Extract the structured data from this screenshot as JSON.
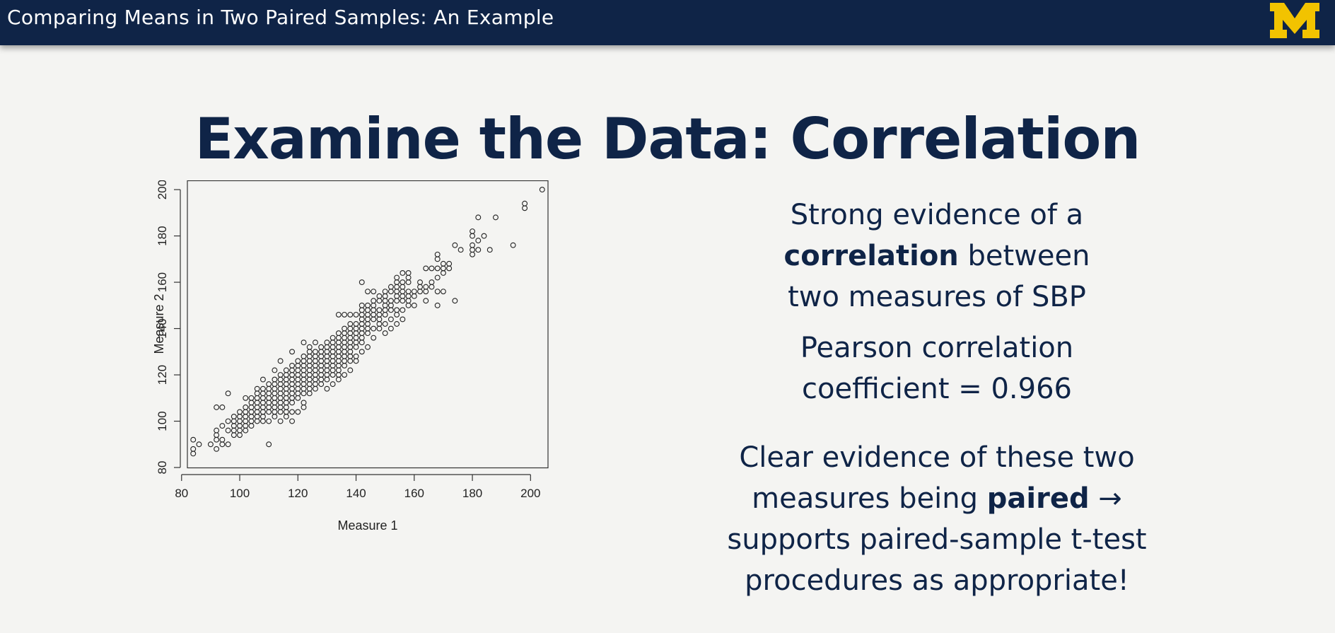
{
  "header": {
    "title": "Comparing Means in Two Paired Samples: An Example",
    "logo_text": "M",
    "logo_color": "#f2c300",
    "bar_color": "#0f2447"
  },
  "slide": {
    "title": "Examine the Data: Correlation"
  },
  "text": {
    "p1_line1": "Strong evidence of a",
    "p1_line2_bold": "correlation",
    "p1_line2_rest": " between",
    "p1_line3": "two measures of SBP",
    "p2_line1": "Pearson correlation",
    "p2_line2": "coefficient = 0.966",
    "p3_line1": "Clear evidence of these two",
    "p3_line2_pre": "measures being ",
    "p3_line2_bold": "paired",
    "p3_line2_post": " →",
    "p3_line3": "supports paired-sample t-test",
    "p3_line4": "procedures as appropriate!"
  },
  "chart_data": {
    "type": "scatter",
    "title": "",
    "xlabel": "Measure 1",
    "ylabel": "Measure 2",
    "xlim": [
      82,
      206
    ],
    "ylim": [
      80,
      204
    ],
    "xticks": [
      80,
      100,
      120,
      140,
      160,
      180,
      200
    ],
    "yticks": [
      80,
      100,
      120,
      140,
      160,
      180,
      200
    ],
    "grid": false,
    "points": [
      [
        84,
        86
      ],
      [
        84,
        88
      ],
      [
        84,
        92
      ],
      [
        86,
        90
      ],
      [
        90,
        90
      ],
      [
        92,
        88
      ],
      [
        92,
        92
      ],
      [
        92,
        94
      ],
      [
        92,
        96
      ],
      [
        92,
        106
      ],
      [
        94,
        90
      ],
      [
        94,
        92
      ],
      [
        94,
        98
      ],
      [
        94,
        106
      ],
      [
        96,
        90
      ],
      [
        96,
        96
      ],
      [
        96,
        100
      ],
      [
        96,
        112
      ],
      [
        98,
        94
      ],
      [
        98,
        96
      ],
      [
        98,
        98
      ],
      [
        98,
        100
      ],
      [
        98,
        102
      ],
      [
        100,
        94
      ],
      [
        100,
        96
      ],
      [
        100,
        98
      ],
      [
        100,
        100
      ],
      [
        100,
        102
      ],
      [
        100,
        104
      ],
      [
        102,
        96
      ],
      [
        102,
        98
      ],
      [
        102,
        100
      ],
      [
        102,
        102
      ],
      [
        102,
        104
      ],
      [
        102,
        106
      ],
      [
        102,
        110
      ],
      [
        104,
        98
      ],
      [
        104,
        100
      ],
      [
        104,
        102
      ],
      [
        104,
        104
      ],
      [
        104,
        106
      ],
      [
        104,
        108
      ],
      [
        104,
        110
      ],
      [
        106,
        100
      ],
      [
        106,
        102
      ],
      [
        106,
        104
      ],
      [
        106,
        106
      ],
      [
        106,
        108
      ],
      [
        106,
        110
      ],
      [
        106,
        112
      ],
      [
        106,
        114
      ],
      [
        108,
        100
      ],
      [
        108,
        102
      ],
      [
        108,
        104
      ],
      [
        108,
        106
      ],
      [
        108,
        108
      ],
      [
        108,
        110
      ],
      [
        108,
        112
      ],
      [
        108,
        114
      ],
      [
        108,
        118
      ],
      [
        110,
        90
      ],
      [
        110,
        100
      ],
      [
        110,
        104
      ],
      [
        110,
        106
      ],
      [
        110,
        108
      ],
      [
        110,
        110
      ],
      [
        110,
        112
      ],
      [
        110,
        114
      ],
      [
        110,
        116
      ],
      [
        112,
        102
      ],
      [
        112,
        104
      ],
      [
        112,
        106
      ],
      [
        112,
        108
      ],
      [
        112,
        110
      ],
      [
        112,
        112
      ],
      [
        112,
        114
      ],
      [
        112,
        116
      ],
      [
        112,
        118
      ],
      [
        112,
        122
      ],
      [
        114,
        100
      ],
      [
        114,
        104
      ],
      [
        114,
        106
      ],
      [
        114,
        108
      ],
      [
        114,
        110
      ],
      [
        114,
        112
      ],
      [
        114,
        114
      ],
      [
        114,
        116
      ],
      [
        114,
        118
      ],
      [
        114,
        120
      ],
      [
        114,
        126
      ],
      [
        116,
        102
      ],
      [
        116,
        104
      ],
      [
        116,
        106
      ],
      [
        116,
        108
      ],
      [
        116,
        110
      ],
      [
        116,
        112
      ],
      [
        116,
        114
      ],
      [
        116,
        116
      ],
      [
        116,
        118
      ],
      [
        116,
        120
      ],
      [
        116,
        122
      ],
      [
        118,
        100
      ],
      [
        118,
        104
      ],
      [
        118,
        108
      ],
      [
        118,
        110
      ],
      [
        118,
        112
      ],
      [
        118,
        114
      ],
      [
        118,
        116
      ],
      [
        118,
        118
      ],
      [
        118,
        120
      ],
      [
        118,
        122
      ],
      [
        118,
        124
      ],
      [
        118,
        130
      ],
      [
        120,
        104
      ],
      [
        120,
        110
      ],
      [
        120,
        112
      ],
      [
        120,
        114
      ],
      [
        120,
        116
      ],
      [
        120,
        118
      ],
      [
        120,
        120
      ],
      [
        120,
        122
      ],
      [
        120,
        124
      ],
      [
        120,
        126
      ],
      [
        122,
        106
      ],
      [
        122,
        108
      ],
      [
        122,
        112
      ],
      [
        122,
        114
      ],
      [
        122,
        116
      ],
      [
        122,
        118
      ],
      [
        122,
        120
      ],
      [
        122,
        122
      ],
      [
        122,
        124
      ],
      [
        122,
        126
      ],
      [
        122,
        128
      ],
      [
        122,
        134
      ],
      [
        124,
        112
      ],
      [
        124,
        114
      ],
      [
        124,
        116
      ],
      [
        124,
        118
      ],
      [
        124,
        120
      ],
      [
        124,
        122
      ],
      [
        124,
        124
      ],
      [
        124,
        126
      ],
      [
        124,
        128
      ],
      [
        124,
        130
      ],
      [
        124,
        132
      ],
      [
        126,
        114
      ],
      [
        126,
        116
      ],
      [
        126,
        118
      ],
      [
        126,
        120
      ],
      [
        126,
        122
      ],
      [
        126,
        124
      ],
      [
        126,
        126
      ],
      [
        126,
        128
      ],
      [
        126,
        130
      ],
      [
        126,
        134
      ],
      [
        128,
        116
      ],
      [
        128,
        118
      ],
      [
        128,
        120
      ],
      [
        128,
        122
      ],
      [
        128,
        124
      ],
      [
        128,
        126
      ],
      [
        128,
        128
      ],
      [
        128,
        130
      ],
      [
        128,
        132
      ],
      [
        130,
        114
      ],
      [
        130,
        118
      ],
      [
        130,
        120
      ],
      [
        130,
        122
      ],
      [
        130,
        124
      ],
      [
        130,
        126
      ],
      [
        130,
        128
      ],
      [
        130,
        130
      ],
      [
        130,
        132
      ],
      [
        130,
        134
      ],
      [
        132,
        116
      ],
      [
        132,
        120
      ],
      [
        132,
        122
      ],
      [
        132,
        124
      ],
      [
        132,
        126
      ],
      [
        132,
        128
      ],
      [
        132,
        130
      ],
      [
        132,
        132
      ],
      [
        132,
        134
      ],
      [
        132,
        136
      ],
      [
        134,
        118
      ],
      [
        134,
        120
      ],
      [
        134,
        122
      ],
      [
        134,
        124
      ],
      [
        134,
        126
      ],
      [
        134,
        128
      ],
      [
        134,
        130
      ],
      [
        134,
        132
      ],
      [
        134,
        134
      ],
      [
        134,
        136
      ],
      [
        134,
        138
      ],
      [
        134,
        146
      ],
      [
        136,
        120
      ],
      [
        136,
        124
      ],
      [
        136,
        126
      ],
      [
        136,
        128
      ],
      [
        136,
        130
      ],
      [
        136,
        132
      ],
      [
        136,
        134
      ],
      [
        136,
        136
      ],
      [
        136,
        138
      ],
      [
        136,
        140
      ],
      [
        136,
        146
      ],
      [
        138,
        122
      ],
      [
        138,
        126
      ],
      [
        138,
        128
      ],
      [
        138,
        130
      ],
      [
        138,
        132
      ],
      [
        138,
        134
      ],
      [
        138,
        136
      ],
      [
        138,
        138
      ],
      [
        138,
        140
      ],
      [
        138,
        142
      ],
      [
        138,
        146
      ],
      [
        140,
        126
      ],
      [
        140,
        128
      ],
      [
        140,
        132
      ],
      [
        140,
        134
      ],
      [
        140,
        136
      ],
      [
        140,
        138
      ],
      [
        140,
        140
      ],
      [
        140,
        142
      ],
      [
        140,
        146
      ],
      [
        142,
        130
      ],
      [
        142,
        134
      ],
      [
        142,
        136
      ],
      [
        142,
        138
      ],
      [
        142,
        140
      ],
      [
        142,
        142
      ],
      [
        142,
        144
      ],
      [
        142,
        146
      ],
      [
        142,
        148
      ],
      [
        142,
        150
      ],
      [
        142,
        160
      ],
      [
        144,
        132
      ],
      [
        144,
        138
      ],
      [
        144,
        140
      ],
      [
        144,
        142
      ],
      [
        144,
        144
      ],
      [
        144,
        146
      ],
      [
        144,
        148
      ],
      [
        144,
        150
      ],
      [
        144,
        156
      ],
      [
        146,
        136
      ],
      [
        146,
        140
      ],
      [
        146,
        144
      ],
      [
        146,
        146
      ],
      [
        146,
        148
      ],
      [
        146,
        150
      ],
      [
        146,
        152
      ],
      [
        146,
        156
      ],
      [
        148,
        140
      ],
      [
        148,
        142
      ],
      [
        148,
        144
      ],
      [
        148,
        146
      ],
      [
        148,
        148
      ],
      [
        148,
        152
      ],
      [
        148,
        154
      ],
      [
        150,
        138
      ],
      [
        150,
        142
      ],
      [
        150,
        146
      ],
      [
        150,
        148
      ],
      [
        150,
        150
      ],
      [
        150,
        152
      ],
      [
        150,
        154
      ],
      [
        150,
        156
      ],
      [
        152,
        140
      ],
      [
        152,
        144
      ],
      [
        152,
        148
      ],
      [
        152,
        150
      ],
      [
        152,
        152
      ],
      [
        152,
        156
      ],
      [
        152,
        158
      ],
      [
        154,
        142
      ],
      [
        154,
        146
      ],
      [
        154,
        148
      ],
      [
        154,
        152
      ],
      [
        154,
        154
      ],
      [
        154,
        156
      ],
      [
        154,
        158
      ],
      [
        154,
        160
      ],
      [
        154,
        162
      ],
      [
        156,
        144
      ],
      [
        156,
        148
      ],
      [
        156,
        152
      ],
      [
        156,
        154
      ],
      [
        156,
        156
      ],
      [
        156,
        158
      ],
      [
        156,
        160
      ],
      [
        156,
        164
      ],
      [
        158,
        150
      ],
      [
        158,
        152
      ],
      [
        158,
        154
      ],
      [
        158,
        156
      ],
      [
        158,
        160
      ],
      [
        158,
        162
      ],
      [
        158,
        164
      ],
      [
        160,
        150
      ],
      [
        160,
        154
      ],
      [
        160,
        156
      ],
      [
        162,
        156
      ],
      [
        162,
        158
      ],
      [
        162,
        160
      ],
      [
        164,
        152
      ],
      [
        164,
        156
      ],
      [
        164,
        158
      ],
      [
        164,
        166
      ],
      [
        166,
        158
      ],
      [
        166,
        160
      ],
      [
        166,
        166
      ],
      [
        168,
        150
      ],
      [
        168,
        156
      ],
      [
        168,
        162
      ],
      [
        168,
        166
      ],
      [
        168,
        170
      ],
      [
        168,
        172
      ],
      [
        170,
        156
      ],
      [
        170,
        164
      ],
      [
        170,
        166
      ],
      [
        170,
        168
      ],
      [
        172,
        166
      ],
      [
        172,
        168
      ],
      [
        174,
        152
      ],
      [
        174,
        176
      ],
      [
        176,
        174
      ],
      [
        180,
        172
      ],
      [
        180,
        174
      ],
      [
        180,
        176
      ],
      [
        180,
        180
      ],
      [
        180,
        182
      ],
      [
        182,
        174
      ],
      [
        182,
        178
      ],
      [
        182,
        188
      ],
      [
        184,
        180
      ],
      [
        186,
        174
      ],
      [
        188,
        188
      ],
      [
        194,
        176
      ],
      [
        198,
        192
      ],
      [
        198,
        194
      ],
      [
        204,
        200
      ]
    ]
  }
}
